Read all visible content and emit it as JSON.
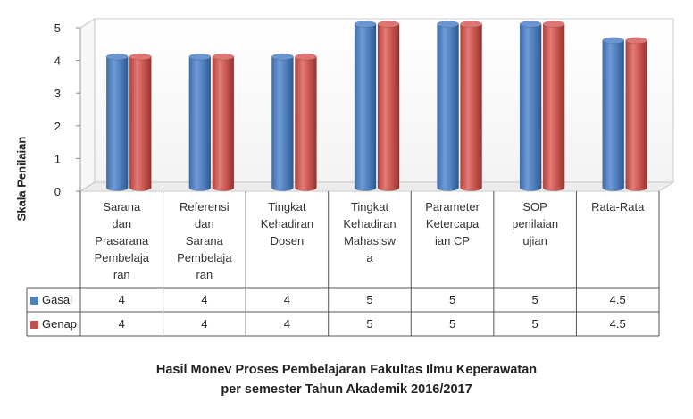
{
  "chart_data": {
    "type": "bar",
    "title": "Hasil Monev Proses Pembelajaran Fakultas Ilmu Keperawatan",
    "subtitle": "per semester Tahun Akademik 2016/2017",
    "ylabel": "Skala Penilaian",
    "xlabel": "",
    "ylim": [
      0,
      5
    ],
    "yticks": [
      "0",
      "1",
      "2",
      "3",
      "4",
      "5"
    ],
    "categories": [
      "Sarana dan Prasarana Pembelajaran",
      "Referensi dan Sarana Pembelajaran",
      "Tingkat Kehadiran Dosen",
      "Tingkat Kehadiran Mahasiswa",
      "Parameter Ketercapaian CP",
      "SOP penilaian ujian",
      "Rata-Rata"
    ],
    "category_lines": [
      [
        "Sarana",
        "dan",
        "Prasarana",
        "Pembelaja",
        "ran"
      ],
      [
        "Referensi",
        "dan",
        "Sarana",
        "Pembelaja",
        "ran"
      ],
      [
        "Tingkat",
        "Kehadiran",
        "Dosen"
      ],
      [
        "Tingkat",
        "Kehadiran",
        "Mahasisw",
        "a"
      ],
      [
        "Parameter",
        "Ketercapa",
        "ian CP"
      ],
      [
        "SOP",
        "penilaian",
        "ujian"
      ],
      [
        "Rata-Rata"
      ]
    ],
    "series": [
      {
        "name": "Gasal",
        "values": [
          4,
          4,
          4,
          5,
          5,
          5,
          4.5
        ],
        "labels": [
          "4",
          "4",
          "4",
          "5",
          "5",
          "5",
          "4.5"
        ],
        "color": "#4f81bd"
      },
      {
        "name": "Genap",
        "values": [
          4,
          4,
          4,
          5,
          5,
          5,
          4.5
        ],
        "labels": [
          "4",
          "4",
          "4",
          "5",
          "5",
          "5",
          "4.5"
        ],
        "color": "#c0504d"
      }
    ],
    "grid": false,
    "legend": "data-table"
  }
}
